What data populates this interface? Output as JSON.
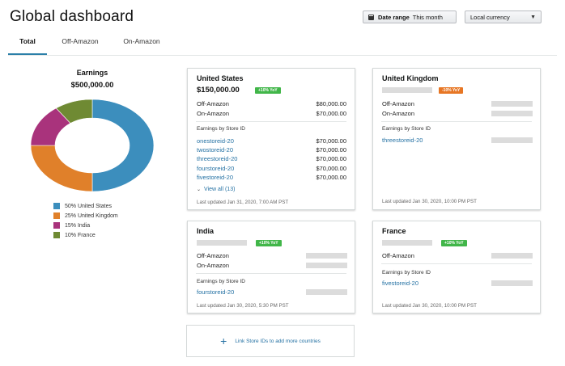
{
  "header": {
    "title": "Global dashboard",
    "date_range_label": "Date range",
    "date_range_value": "This month",
    "currency_value": "Local currency"
  },
  "tabs": [
    {
      "label": "Total",
      "active": true
    },
    {
      "label": "Off-Amazon",
      "active": false
    },
    {
      "label": "On-Amazon",
      "active": false
    }
  ],
  "earnings": {
    "title": "Earnings",
    "value": "$500,000.00"
  },
  "chart_data": {
    "type": "pie",
    "categories": [
      "United States",
      "United Kingdom",
      "India",
      "France"
    ],
    "values": [
      50,
      25,
      15,
      10
    ],
    "colors": [
      "#3c8ebd",
      "#e0802a",
      "#a9337c",
      "#6f8a33"
    ],
    "legend": [
      "50% United States",
      "25% United Kingdom",
      "15% India",
      "10% France"
    ],
    "donut": true
  },
  "cards": {
    "us": {
      "title": "United States",
      "amount": "$150,000.00",
      "badge": "+10% YoY",
      "off_label": "Off-Amazon",
      "off_value": "$80,000.00",
      "on_label": "On-Amazon",
      "on_value": "$70,000.00",
      "section_label": "Earnings by Store ID",
      "stores": [
        {
          "id": "onestoreid-20",
          "value": "$70,000.00"
        },
        {
          "id": "twostoreid-20",
          "value": "$70,000.00"
        },
        {
          "id": "threestoreid-20",
          "value": "$70,000.00"
        },
        {
          "id": "fourstoreid-20",
          "value": "$70,000.00"
        },
        {
          "id": "fivestoreid-20",
          "value": "$70,000.00"
        }
      ],
      "view_all": "View all (13)",
      "updated": "Last updated Jan 31, 2020, 7:00 AM PST"
    },
    "uk": {
      "title": "United Kingdom",
      "badge": "-10% YoY",
      "off_label": "Off-Amazon",
      "on_label": "On-Amazon",
      "section_label": "Earnings by Store ID",
      "store": "threestoreid-20",
      "updated": "Last updated Jan 30, 2020, 10:00 PM PST"
    },
    "india": {
      "title": "India",
      "badge": "+10% YoY",
      "off_label": "Off-Amazon",
      "on_label": "On-Amazon",
      "section_label": "Earnings by Store ID",
      "store": "fourstoreid-20",
      "updated": "Last updated Jan 30, 2020, 5:30 PM PST"
    },
    "france": {
      "title": "France",
      "badge": "+10% YoY",
      "off_label": "Off-Amazon",
      "section_label": "Earnings by Store ID",
      "store": "fivestoreid-20",
      "updated": "Last updated Jan 30, 2020, 10:00 PM PST"
    }
  },
  "link_store": {
    "icon": "plus-icon",
    "text": "Link Store IDs to add more countries"
  }
}
